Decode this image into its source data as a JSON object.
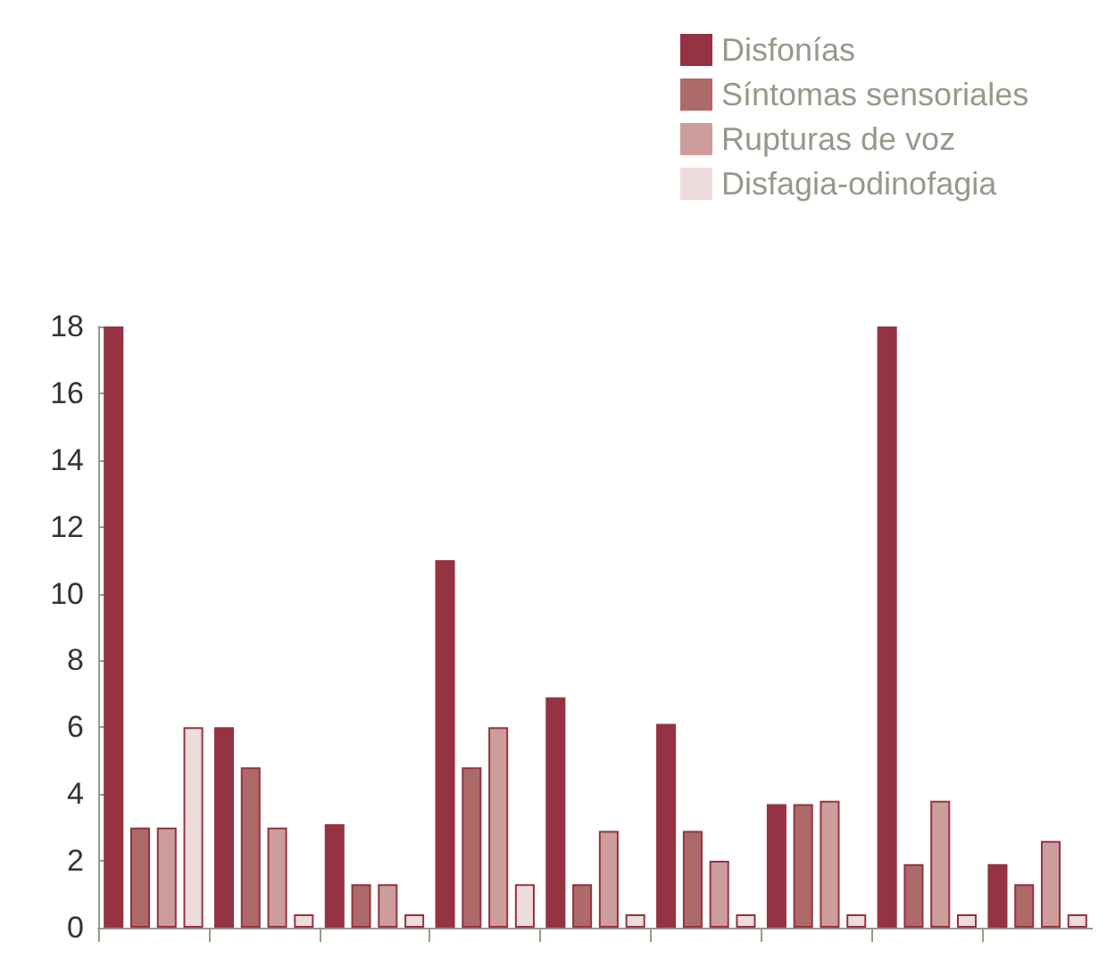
{
  "chart_data": {
    "type": "bar",
    "categories": [
      null,
      null,
      null,
      null,
      null,
      null,
      null,
      null,
      null
    ],
    "series": [
      {
        "name": "Disfonías",
        "color": "#953342",
        "values": [
          18,
          6,
          3.1,
          11,
          6.9,
          6.1,
          3.7,
          18,
          1.9
        ]
      },
      {
        "name": "Síntomas sensoriales",
        "color": "#ad6a69",
        "values": [
          3,
          4.8,
          1.3,
          4.8,
          1.3,
          2.9,
          3.7,
          1.9,
          1.3
        ]
      },
      {
        "name": "Rupturas de voz",
        "color": "#cc9d9a",
        "values": [
          3,
          3,
          1.3,
          6,
          2.9,
          2,
          3.8,
          3.8,
          2.6
        ]
      },
      {
        "name": "Disfagia-odinofagia",
        "color": "#ecdcdc",
        "values": [
          6,
          0.4,
          0.4,
          1.3,
          0.4,
          0.4,
          0.4,
          0.4,
          0.4
        ]
      }
    ],
    "ylim": [
      0,
      18
    ],
    "yticks": [
      0,
      2,
      4,
      6,
      8,
      10,
      12,
      14,
      16,
      18
    ],
    "grid": false,
    "legend": "top right"
  }
}
